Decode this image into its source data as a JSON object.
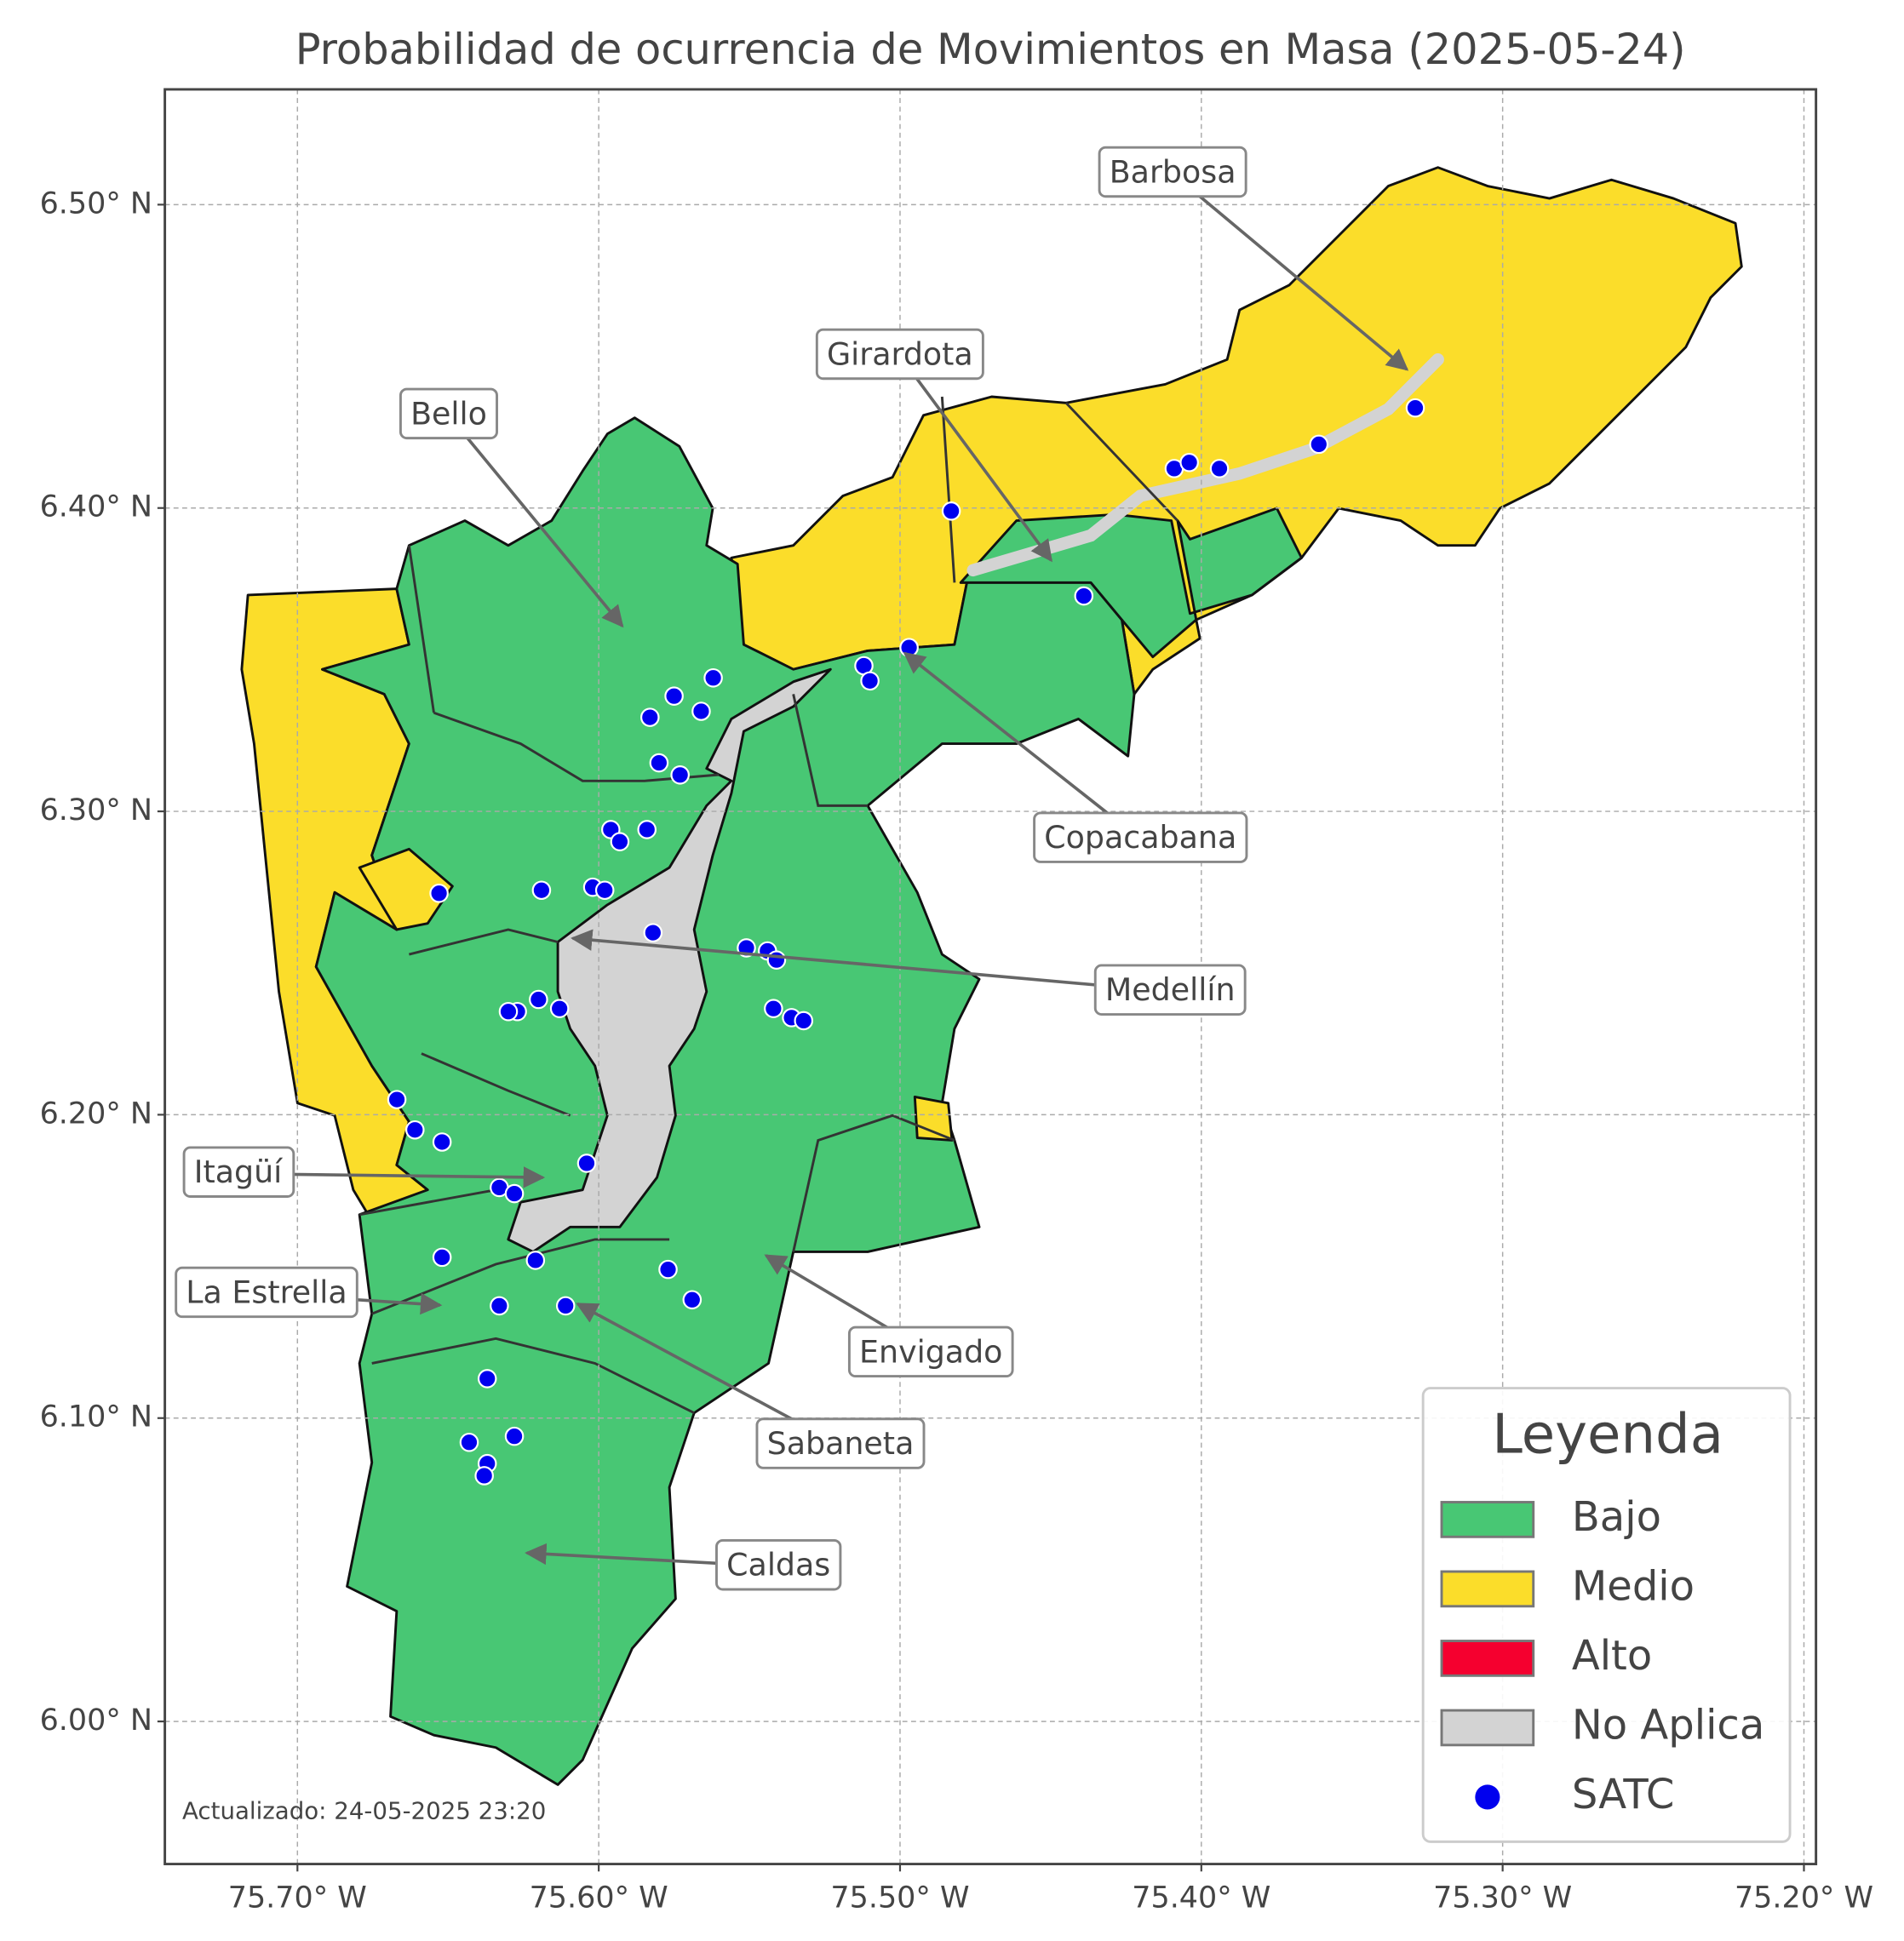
{
  "title": "Probabilidad de ocurrencia de Movimientos en Masa (2025-05-24)",
  "map": {
    "xlim": [
      -75.744,
      -75.196
    ],
    "ylim": [
      5.953,
      6.538
    ],
    "xticks": [
      {
        "value": -75.7,
        "label": "75.70° W"
      },
      {
        "value": -75.6,
        "label": "75.60° W"
      },
      {
        "value": -75.5,
        "label": "75.50° W"
      },
      {
        "value": -75.4,
        "label": "75.40° W"
      },
      {
        "value": -75.3,
        "label": "75.30° W"
      },
      {
        "value": -75.2,
        "label": "75.20° W"
      }
    ],
    "yticks": [
      {
        "value": 6.0,
        "label": "6.00° N"
      },
      {
        "value": 6.1,
        "label": "6.10° N"
      },
      {
        "value": 6.2,
        "label": "6.20° N"
      },
      {
        "value": 6.3,
        "label": "6.30° N"
      },
      {
        "value": 6.4,
        "label": "6.40° N"
      },
      {
        "value": 6.5,
        "label": "6.50° N"
      }
    ],
    "grid": true,
    "annotations": [
      "Barbosa",
      "Girardota",
      "Bello",
      "Copacabana",
      "Medellín",
      "Itagüí",
      "La Estrella",
      "Envigado",
      "Sabaneta",
      "Caldas"
    ],
    "stations": {
      "name": "SATC",
      "color": "#0000ee",
      "lon": [
        -75.483,
        -75.409,
        -75.404,
        -75.394,
        -75.361,
        -75.329,
        -75.439,
        -75.497,
        -75.512,
        -75.51,
        -75.562,
        -75.575,
        -75.583,
        -75.566,
        -75.58,
        -75.573,
        -75.596,
        -75.593,
        -75.584,
        -75.653,
        -75.619,
        -75.602,
        -75.598,
        -75.582,
        -75.551,
        -75.544,
        -75.541,
        -75.542,
        -75.536,
        -75.532,
        -75.62,
        -75.627,
        -75.63,
        -75.613,
        -75.667,
        -75.661,
        -75.652,
        -75.604,
        -75.633,
        -75.628,
        -75.652,
        -75.621,
        -75.577,
        -75.569,
        -75.633,
        -75.611,
        -75.637,
        -75.643,
        -75.628,
        -75.637,
        -75.638
      ],
      "lat": [
        6.399,
        6.413,
        6.415,
        6.413,
        6.421,
        6.433,
        6.371,
        6.354,
        6.348,
        6.343,
        6.344,
        6.338,
        6.331,
        6.333,
        6.316,
        6.312,
        6.294,
        6.29,
        6.294,
        6.273,
        6.274,
        6.275,
        6.274,
        6.26,
        6.255,
        6.254,
        6.251,
        6.235,
        6.232,
        6.231,
        6.238,
        6.234,
        6.234,
        6.235,
        6.205,
        6.195,
        6.191,
        6.184,
        6.176,
        6.174,
        6.153,
        6.152,
        6.149,
        6.139,
        6.137,
        6.137,
        6.113,
        6.092,
        6.094,
        6.085,
        6.081
      ]
    }
  },
  "legend": {
    "title": "Leyenda",
    "entries": [
      {
        "label": "Bajo",
        "color": "#48c774"
      },
      {
        "label": "Medio",
        "color": "#fbdd2a"
      },
      {
        "label": "Alto",
        "color": "#f5002f"
      },
      {
        "label": "No Aplica",
        "color": "#d3d3d3"
      }
    ]
  },
  "note": "Actualizado: 24-05-2025 23:20"
}
